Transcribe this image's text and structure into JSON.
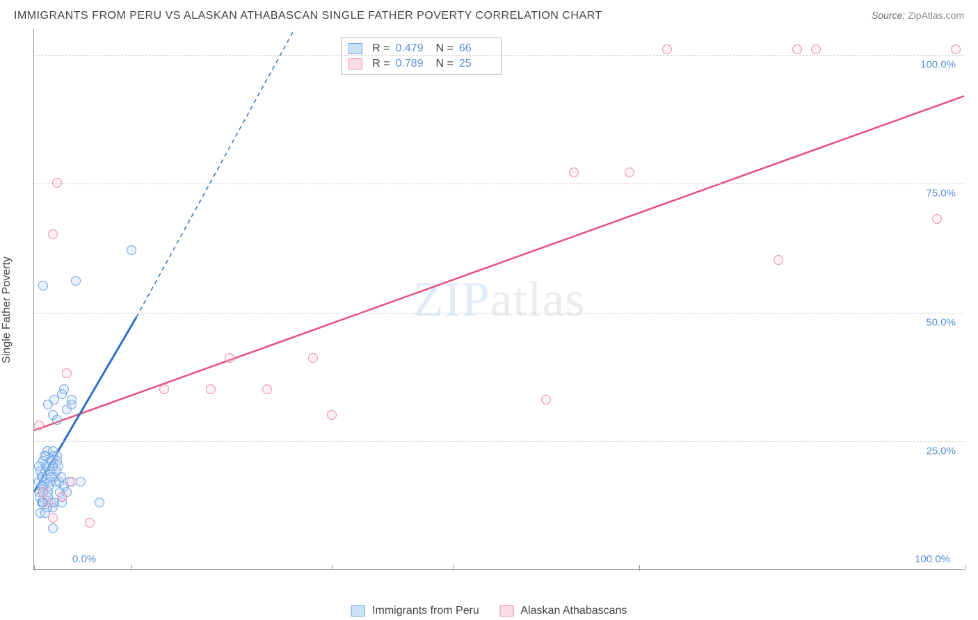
{
  "title": "IMMIGRANTS FROM PERU VS ALASKAN ATHABASCAN SINGLE FATHER POVERTY CORRELATION CHART",
  "source_label": "Source:",
  "source_value": "ZipAtlas.com",
  "y_axis_label": "Single Father Poverty",
  "watermark_a": "ZIP",
  "watermark_b": "atlas",
  "chart": {
    "type": "scatter",
    "xlim": [
      0,
      100
    ],
    "ylim": [
      0,
      105
    ],
    "x_ticks_pct": [
      0,
      10.5,
      32,
      45,
      65,
      100
    ],
    "y_gridlines": [
      25,
      50,
      75,
      100
    ],
    "y_tick_labels": [
      "25.0%",
      "50.0%",
      "75.0%",
      "100.0%"
    ],
    "x_tick_left": "0.0%",
    "x_tick_right": "100.0%",
    "background_color": "#ffffff",
    "grid_color": "#cccccc",
    "point_radius": 7,
    "point_stroke_width": 1.5,
    "point_fill_opacity": 0.25
  },
  "series": [
    {
      "id": "peru",
      "label": "Immigrants from Peru",
      "color_stroke": "#6fa3e0",
      "color_fill": "#a9cdf2",
      "R": "0.479",
      "N": "66",
      "trend": {
        "x1": 0,
        "y1": 15,
        "x2": 11,
        "y2": 49,
        "x2_dash": 28,
        "y2_dash": 105,
        "color": "#2f6fc5",
        "solid_width": 3,
        "dash_width": 1.5,
        "dash": "6,5"
      },
      "points": [
        [
          0.5,
          17
        ],
        [
          0.8,
          18
        ],
        [
          1.0,
          16
        ],
        [
          1.2,
          19
        ],
        [
          1.5,
          14
        ],
        [
          1.0,
          21
        ],
        [
          0.6,
          15
        ],
        [
          1.8,
          17
        ],
        [
          2.0,
          12
        ],
        [
          1.3,
          22
        ],
        [
          0.9,
          13
        ],
        [
          2.2,
          18
        ],
        [
          1.6,
          20
        ],
        [
          0.7,
          11
        ],
        [
          2.5,
          21
        ],
        [
          1.1,
          17
        ],
        [
          1.4,
          23
        ],
        [
          2.8,
          15
        ],
        [
          0.5,
          20
        ],
        [
          1.9,
          13
        ],
        [
          2.1,
          22
        ],
        [
          0.8,
          16
        ],
        [
          1.7,
          19
        ],
        [
          2.3,
          17
        ],
        [
          3.0,
          14
        ],
        [
          1.2,
          11
        ],
        [
          2.6,
          20
        ],
        [
          0.9,
          18
        ],
        [
          1.5,
          15
        ],
        [
          2.0,
          23
        ],
        [
          3.2,
          16
        ],
        [
          1.0,
          13
        ],
        [
          2.4,
          19
        ],
        [
          1.8,
          21
        ],
        [
          0.6,
          14
        ],
        [
          2.7,
          17
        ],
        [
          1.3,
          20
        ],
        [
          3.5,
          15
        ],
        [
          1.1,
          22
        ],
        [
          2.2,
          13
        ],
        [
          0.7,
          19
        ],
        [
          1.6,
          16
        ],
        [
          2.9,
          18
        ],
        [
          1.4,
          12
        ],
        [
          2.0,
          20
        ],
        [
          3.8,
          17
        ],
        [
          1.0,
          15
        ],
        [
          2.5,
          22
        ],
        [
          0.8,
          13
        ],
        [
          1.9,
          18
        ],
        [
          2.0,
          30
        ],
        [
          1.5,
          32
        ],
        [
          3.0,
          34
        ],
        [
          2.5,
          29
        ],
        [
          3.5,
          31
        ],
        [
          2.2,
          33
        ],
        [
          4.0,
          32
        ],
        [
          3.2,
          35
        ],
        [
          1.0,
          55
        ],
        [
          4.5,
          56
        ],
        [
          4.0,
          33
        ],
        [
          5.0,
          17
        ],
        [
          7.0,
          13
        ],
        [
          3.0,
          13
        ],
        [
          10.5,
          62
        ],
        [
          2.0,
          8
        ]
      ]
    },
    {
      "id": "athabascan",
      "label": "Alaskan Athabascans",
      "color_stroke": "#e88fb0",
      "color_fill": "#f6c6d6",
      "R": "0.789",
      "N": "25",
      "trend": {
        "x1": 0,
        "y1": 27,
        "x2": 100,
        "y2": 92,
        "color": "#e94f7b",
        "solid_width": 2.5
      },
      "points": [
        [
          0.5,
          28
        ],
        [
          1.0,
          15
        ],
        [
          1.5,
          13
        ],
        [
          2.0,
          10
        ],
        [
          3.0,
          14
        ],
        [
          4.0,
          17
        ],
        [
          3.5,
          38
        ],
        [
          2.0,
          65
        ],
        [
          2.5,
          75
        ],
        [
          14,
          35
        ],
        [
          19,
          35
        ],
        [
          21,
          41
        ],
        [
          25,
          35
        ],
        [
          30,
          41
        ],
        [
          32,
          30
        ],
        [
          55,
          33
        ],
        [
          58,
          77
        ],
        [
          64,
          77
        ],
        [
          68,
          101
        ],
        [
          80,
          60
        ],
        [
          82,
          101
        ],
        [
          84,
          101
        ],
        [
          97,
          68
        ],
        [
          99,
          101
        ],
        [
          6,
          9
        ]
      ]
    }
  ],
  "legend_stats": {
    "top_pct": 1.5,
    "left_pct": 33,
    "R_label": "R =",
    "N_label": "N ="
  }
}
